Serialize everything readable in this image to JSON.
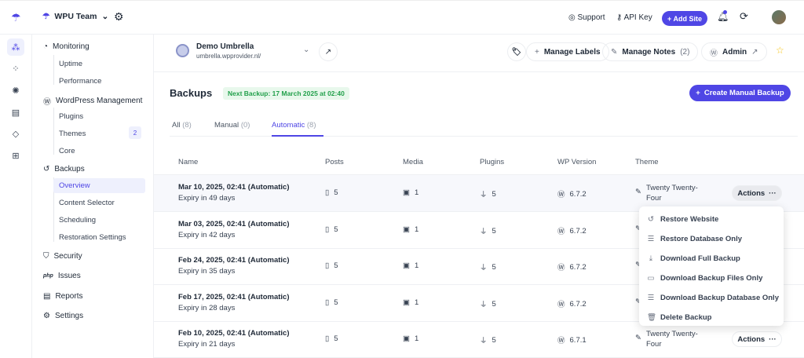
{
  "topbar": {
    "team": "WPU Team",
    "support": "Support",
    "api_key": "API Key",
    "add_site": "+ Add Site"
  },
  "colors": {
    "accent": "#4f46e5",
    "next_backup_bg": "#e8f8ec",
    "next_backup_text": "#22a04b"
  },
  "nav": {
    "monitoring": "Monitoring",
    "uptime": "Uptime",
    "performance": "Performance",
    "wp_management": "WordPress Management",
    "plugins": "Plugins",
    "themes": "Themes",
    "themes_badge": "2",
    "core": "Core",
    "backups": "Backups",
    "overview": "Overview",
    "content_selector": "Content Selector",
    "scheduling": "Scheduling",
    "restoration_settings": "Restoration Settings",
    "security": "Security",
    "issues": "Issues",
    "reports": "Reports",
    "settings": "Settings",
    "issues_icon_text": "php"
  },
  "site": {
    "name": "Demo Umbrella",
    "url": "umbrella.wpprovider.nl/",
    "manage_labels": "Manage Labels",
    "manage_notes": "Manage Notes",
    "notes_count": "(2)",
    "admin": "Admin"
  },
  "backups": {
    "title": "Backups",
    "next_backup": "Next Backup: 17 March 2025 at 02:40",
    "create": "Create Manual Backup",
    "tabs": [
      {
        "label": "All",
        "count": "(8)"
      },
      {
        "label": "Manual",
        "count": "(0)"
      },
      {
        "label": "Automatic",
        "count": "(8)"
      }
    ],
    "columns": [
      "Name",
      "Posts",
      "Media",
      "Plugins",
      "WP Version",
      "Theme"
    ],
    "rows": [
      {
        "name": "Mar 10, 2025, 02:41 (Automatic)",
        "expiry": "Expiry in 49 days",
        "posts": "5",
        "media": "1",
        "plugins": "5",
        "wp": "6.7.2",
        "theme": "Twenty Twenty-Four"
      },
      {
        "name": "Mar 03, 2025, 02:41 (Automatic)",
        "expiry": "Expiry in 42 days",
        "posts": "5",
        "media": "1",
        "plugins": "5",
        "wp": "6.7.2",
        "theme": ""
      },
      {
        "name": "Feb 24, 2025, 02:41 (Automatic)",
        "expiry": "Expiry in 35 days",
        "posts": "5",
        "media": "1",
        "plugins": "5",
        "wp": "6.7.2",
        "theme": ""
      },
      {
        "name": "Feb 17, 2025, 02:41 (Automatic)",
        "expiry": "Expiry in 28 days",
        "posts": "5",
        "media": "1",
        "plugins": "5",
        "wp": "6.7.2",
        "theme": ""
      },
      {
        "name": "Feb 10, 2025, 02:41 (Automatic)",
        "expiry": "Expiry in 21 days",
        "posts": "5",
        "media": "1",
        "plugins": "5",
        "wp": "6.7.1",
        "theme": "Twenty Twenty-Four"
      }
    ],
    "actions": "Actions",
    "menu": [
      "Restore Website",
      "Restore Database Only",
      "Download Full Backup",
      "Download Backup Files Only",
      "Download Backup Database Only",
      "Delete Backup"
    ]
  }
}
